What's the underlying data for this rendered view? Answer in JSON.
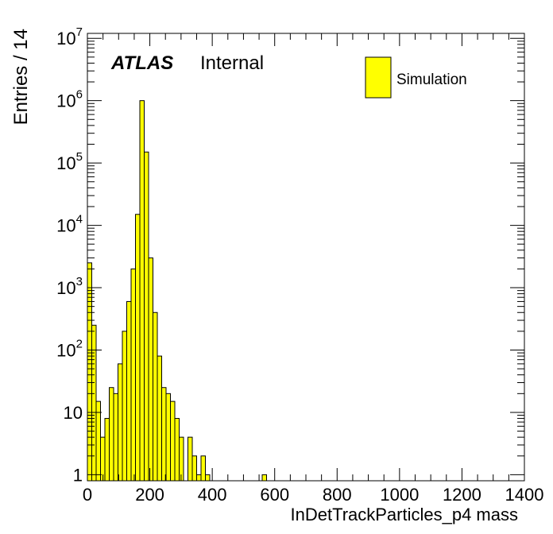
{
  "chart_data": {
    "type": "bar",
    "title": "",
    "xlabel": "InDetTrackParticles_p4 mass",
    "ylabel": "Entries / 14",
    "xlim": [
      0,
      1400
    ],
    "ylim": [
      0.8,
      12000000
    ],
    "yscale": "log",
    "bin_width": 14,
    "grid": false,
    "legend_position": "top-right",
    "atlas_label": "ATLAS",
    "atlas_status": "Internal",
    "fill_color": "#ffff00",
    "line_color": "#000000",
    "x_ticks": [
      "0",
      "200",
      "400",
      "600",
      "800",
      "1000",
      "1200",
      "1400"
    ],
    "y_ticks": [
      {
        "value": 1,
        "label": "1"
      },
      {
        "value": 10,
        "label": "10"
      },
      {
        "value": 100,
        "label": "10",
        "sup": "2"
      },
      {
        "value": 1000,
        "label": "10",
        "sup": "3"
      },
      {
        "value": 10000,
        "label": "10",
        "sup": "4"
      },
      {
        "value": 100000,
        "label": "10",
        "sup": "5"
      },
      {
        "value": 1000000,
        "label": "10",
        "sup": "6"
      },
      {
        "value": 10000000,
        "label": "10",
        "sup": "7"
      }
    ],
    "series": [
      {
        "name": "Simulation",
        "bin_edges_start": 0,
        "values": [
          2500,
          250,
          15,
          4,
          8,
          25,
          20,
          60,
          200,
          600,
          2000,
          15000,
          1000000,
          150000,
          3000,
          400,
          80,
          25,
          20,
          15,
          8,
          4,
          0,
          4,
          2,
          1,
          2,
          1,
          0,
          0,
          0,
          0,
          0,
          0,
          0,
          0,
          0,
          0,
          0,
          0,
          1
        ]
      }
    ]
  }
}
